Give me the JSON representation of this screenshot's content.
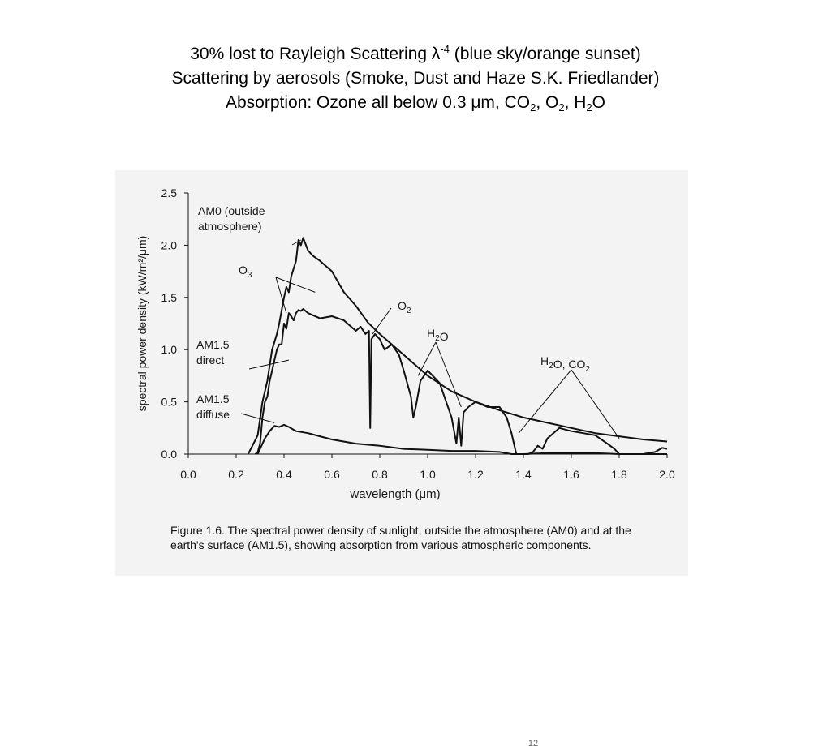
{
  "slide": {
    "heading": {
      "line1_pre": "30% lost to Rayleigh Scattering λ",
      "line1_sup": "-4",
      "line1_post": " (blue sky/orange sunset)",
      "line2": "Scattering by aerosols (Smoke, Dust and Haze S.K. Friedlander)",
      "line3_parts": [
        {
          "text": "Absorption: Ozone all below 0.3 μm, CO",
          "style": "normal"
        },
        {
          "text": "2",
          "style": "sub"
        },
        {
          "text": ", O",
          "style": "normal"
        },
        {
          "text": "2",
          "style": "sub"
        },
        {
          "text": ", H",
          "style": "normal"
        },
        {
          "text": "2",
          "style": "sub"
        },
        {
          "text": "O",
          "style": "normal"
        }
      ]
    },
    "caption": "Figure 1.6. The spectral power density of sunlight, outside the atmosphere (AM0) and at the earth's surface (AM1.5), showing absorption from various atmospheric components.",
    "slide_number": "12"
  },
  "chart_data": {
    "type": "line",
    "title": "",
    "xlabel": "wavelength (μm)",
    "ylabel": "spectral power density (kW/m²/μm)",
    "xlim": [
      0.0,
      2.0
    ],
    "ylim": [
      0.0,
      2.5
    ],
    "x_ticks": [
      "0.0",
      "0.2",
      "0.4",
      "0.6",
      "0.8",
      "1.0",
      "1.2",
      "1.4",
      "1.6",
      "1.8",
      "2.0"
    ],
    "y_ticks": [
      "0.0",
      "0.5",
      "1.0",
      "1.5",
      "2.0",
      "2.5"
    ],
    "grid": false,
    "line_color": "#111111",
    "series": [
      {
        "name": "AM0 (outside atmosphere)",
        "x": [
          0.25,
          0.29,
          0.31,
          0.33,
          0.35,
          0.37,
          0.38,
          0.4,
          0.41,
          0.42,
          0.43,
          0.45,
          0.46,
          0.47,
          0.48,
          0.5,
          0.52,
          0.55,
          0.6,
          0.65,
          0.7,
          0.75,
          0.8,
          0.85,
          0.9,
          1.0,
          1.1,
          1.2,
          1.3,
          1.4,
          1.5,
          1.6,
          1.7,
          1.8,
          1.9,
          2.0
        ],
        "y": [
          0.0,
          0.18,
          0.5,
          0.7,
          1.0,
          1.15,
          1.25,
          1.5,
          1.6,
          1.55,
          1.7,
          1.85,
          2.05,
          2.0,
          2.07,
          1.95,
          1.9,
          1.85,
          1.75,
          1.55,
          1.42,
          1.26,
          1.15,
          1.05,
          0.95,
          0.75,
          0.6,
          0.5,
          0.42,
          0.35,
          0.3,
          0.25,
          0.2,
          0.17,
          0.14,
          0.12
        ]
      },
      {
        "name": "AM1.5 direct",
        "x": [
          0.28,
          0.29,
          0.3,
          0.31,
          0.32,
          0.33,
          0.34,
          0.35,
          0.36,
          0.37,
          0.38,
          0.39,
          0.4,
          0.41,
          0.42,
          0.43,
          0.44,
          0.45,
          0.46,
          0.47,
          0.48,
          0.5,
          0.55,
          0.6,
          0.65,
          0.7,
          0.72,
          0.74,
          0.755,
          0.76,
          0.765,
          0.78,
          0.8,
          0.82,
          0.85,
          0.88,
          0.9,
          0.93,
          0.94,
          0.95,
          0.97,
          1.0,
          1.05,
          1.1,
          1.12,
          1.13,
          1.14,
          1.15,
          1.17,
          1.2,
          1.25,
          1.3,
          1.33,
          1.35,
          1.37,
          1.4,
          1.42,
          1.44,
          1.46,
          1.48,
          1.5,
          1.55,
          1.6,
          1.65,
          1.7,
          1.75,
          1.78,
          1.8,
          1.82,
          1.84,
          1.9,
          1.95,
          1.98,
          2.0
        ],
        "y": [
          0.0,
          0.02,
          0.1,
          0.35,
          0.5,
          0.55,
          0.7,
          0.8,
          0.9,
          1.0,
          1.05,
          1.05,
          1.25,
          1.2,
          1.35,
          1.32,
          1.28,
          1.35,
          1.38,
          1.37,
          1.39,
          1.35,
          1.3,
          1.32,
          1.28,
          1.18,
          1.22,
          1.15,
          1.18,
          0.25,
          1.1,
          1.15,
          1.1,
          1.0,
          1.05,
          0.95,
          0.8,
          0.55,
          0.35,
          0.45,
          0.7,
          0.8,
          0.68,
          0.35,
          0.1,
          0.35,
          0.08,
          0.4,
          0.45,
          0.5,
          0.45,
          0.45,
          0.35,
          0.2,
          0.0,
          0.0,
          0.0,
          0.02,
          0.08,
          0.05,
          0.15,
          0.25,
          0.22,
          0.2,
          0.18,
          0.1,
          0.05,
          0.0,
          0.0,
          0.0,
          0.0,
          0.02,
          0.06,
          0.05
        ]
      },
      {
        "name": "AM1.5 diffuse",
        "x": [
          0.29,
          0.3,
          0.32,
          0.34,
          0.36,
          0.38,
          0.4,
          0.42,
          0.45,
          0.5,
          0.55,
          0.6,
          0.7,
          0.8,
          0.9,
          1.0,
          1.1,
          1.2,
          1.3,
          1.35,
          1.4,
          1.5,
          1.6,
          1.7,
          1.8,
          1.9,
          2.0
        ],
        "y": [
          0.0,
          0.05,
          0.15,
          0.22,
          0.27,
          0.26,
          0.28,
          0.26,
          0.22,
          0.2,
          0.17,
          0.14,
          0.1,
          0.08,
          0.05,
          0.04,
          0.03,
          0.03,
          0.02,
          0.0,
          0.0,
          0.01,
          0.01,
          0.01,
          0.0,
          0.0,
          0.0
        ]
      }
    ],
    "annotations": [
      {
        "id": "am0",
        "lines": [
          "AM0 (outside",
          "atmosphere)"
        ],
        "point_to": [
          0.47,
          2.05
        ]
      },
      {
        "id": "o3",
        "lines": [
          "O3"
        ],
        "point_to": [
          [
            0.41,
            1.35
          ],
          [
            0.53,
            1.55
          ]
        ]
      },
      {
        "id": "am15-direct",
        "lines": [
          "AM1.5",
          "direct"
        ],
        "point_to": [
          0.42,
          0.9
        ]
      },
      {
        "id": "am15-diffuse",
        "lines": [
          "AM1.5",
          "diffuse"
        ],
        "point_to": [
          0.36,
          0.3
        ]
      },
      {
        "id": "o2",
        "lines": [
          "O2"
        ],
        "point_to": [
          0.77,
          1.15
        ]
      },
      {
        "id": "h2o",
        "lines": [
          "H2O"
        ],
        "point_to": [
          [
            0.96,
            0.75
          ],
          [
            1.14,
            0.45
          ]
        ]
      },
      {
        "id": "h2o-co2",
        "lines": [
          "H2O, CO2"
        ],
        "point_to": [
          [
            1.38,
            0.2
          ],
          [
            1.8,
            0.15
          ]
        ]
      }
    ]
  }
}
